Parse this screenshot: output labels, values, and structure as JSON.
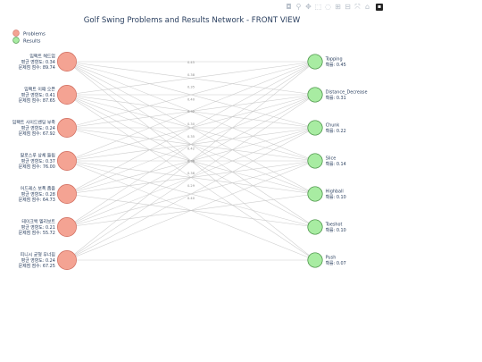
{
  "toolbar": {
    "icons": [
      "camera-icon",
      "zoom-icon",
      "pan-icon",
      "box-select-icon",
      "lasso-select-icon",
      "zoom-in-icon",
      "zoom-out-icon",
      "autoscale-icon",
      "reset-axes-icon",
      "plotly-logo-icon"
    ],
    "glyphs": [
      "◘",
      "⚲",
      "✥",
      "⬚",
      "◌",
      "⊞",
      "⊟",
      "⤧",
      "⌂",
      "▪"
    ]
  },
  "colors": {
    "problem_fill": "#f4a393",
    "problem_stroke": "#cf6a5c",
    "result_fill": "#a8eca2",
    "result_stroke": "#3f8a3c",
    "edge": "#c4c4c4",
    "edge_label": "#8a8a8a",
    "text": "#2a3f5f"
  },
  "chart_data": {
    "type": "network",
    "title": "Golf Swing Problems and Results Network - FRONT VIEW",
    "legend": {
      "position": "top-left",
      "items": [
        {
          "label": "Problems",
          "color": "#f4a393"
        },
        {
          "label": "Results",
          "color": "#a8eca2"
        }
      ]
    },
    "problems": [
      {
        "name": "임팩트 헤드업",
        "lines": [
          "임팩트 헤드업",
          "평균 영향도: 0.34",
          "문제점 점수: 89.74"
        ]
      },
      {
        "name": "임팩트 이때 오픈",
        "lines": [
          "임팩트 이때 오픈",
          "평균 영향도: 0.41",
          "문제점 점수: 87.65"
        ]
      },
      {
        "name": "임팩트 사이드밴딩 부족",
        "lines": [
          "임팩트 사이드밴딩 부족",
          "평균 영향도: 0.24",
          "문제점 점수: 67.92"
        ]
      },
      {
        "name": "팔로스루 상체 들림",
        "lines": [
          "팔로스루 상체 들림",
          "평균 영향도: 0.37",
          "문제점 점수: 76.00"
        ]
      },
      {
        "name": "어드레스 보폭 좁음",
        "lines": [
          "어드레스 보폭 좁음",
          "평균 영향도: 0.28",
          "문제점 점수: 64.73"
        ]
      },
      {
        "name": "테이크백 엘리보트",
        "lines": [
          "테이크백 엘리보트",
          "평균 영향도: 0.21",
          "문제점 점수: 55.72"
        ]
      },
      {
        "name": "피니시 균형 무너짐",
        "lines": [
          "피니시 균형 무너짐",
          "평균 영향도: 0.24",
          "문제점 점수: 67.25"
        ]
      }
    ],
    "results": [
      {
        "name": "Topping",
        "lines": [
          "Topping",
          "확률: 0.45"
        ]
      },
      {
        "name": "Distance_Decrease",
        "lines": [
          "Distance_Decrease",
          "확률: 0.31"
        ]
      },
      {
        "name": "Chunk",
        "lines": [
          "Chunk",
          "확률: 0.22"
        ]
      },
      {
        "name": "Slice",
        "lines": [
          "Slice",
          "확률: 0.14"
        ]
      },
      {
        "name": "Highball",
        "lines": [
          "Highball",
          "확률: 0.10"
        ]
      },
      {
        "name": "Toeshot",
        "lines": [
          "Toeshot",
          "확률: 0.10"
        ]
      },
      {
        "name": "Push",
        "lines": [
          "Push",
          "확률: 0.07"
        ]
      }
    ],
    "edges": [
      [
        0,
        0
      ],
      [
        0,
        1
      ],
      [
        0,
        2
      ],
      [
        0,
        3
      ],
      [
        0,
        4
      ],
      [
        0,
        5
      ],
      [
        0,
        6
      ],
      [
        1,
        0
      ],
      [
        1,
        1
      ],
      [
        1,
        2
      ],
      [
        1,
        3
      ],
      [
        1,
        4
      ],
      [
        1,
        5
      ],
      [
        1,
        6
      ],
      [
        2,
        0
      ],
      [
        2,
        1
      ],
      [
        2,
        2
      ],
      [
        2,
        3
      ],
      [
        2,
        4
      ],
      [
        3,
        0
      ],
      [
        3,
        1
      ],
      [
        3,
        2
      ],
      [
        3,
        3
      ],
      [
        3,
        4
      ],
      [
        3,
        5
      ],
      [
        3,
        6
      ],
      [
        4,
        0
      ],
      [
        4,
        1
      ],
      [
        4,
        2
      ],
      [
        4,
        3
      ],
      [
        4,
        5
      ],
      [
        5,
        0
      ],
      [
        5,
        1
      ],
      [
        5,
        2
      ],
      [
        5,
        3
      ],
      [
        5,
        4
      ],
      [
        6,
        0
      ],
      [
        6,
        1
      ],
      [
        6,
        2
      ],
      [
        6,
        3
      ],
      [
        6,
        6
      ]
    ],
    "edge_labels": [
      "0.45",
      "0.38",
      "0.35",
      "0.40",
      "0.32",
      "0.30",
      "0.35",
      "0.42",
      "0.36",
      "0.38",
      "0.29",
      "0.40"
    ]
  }
}
